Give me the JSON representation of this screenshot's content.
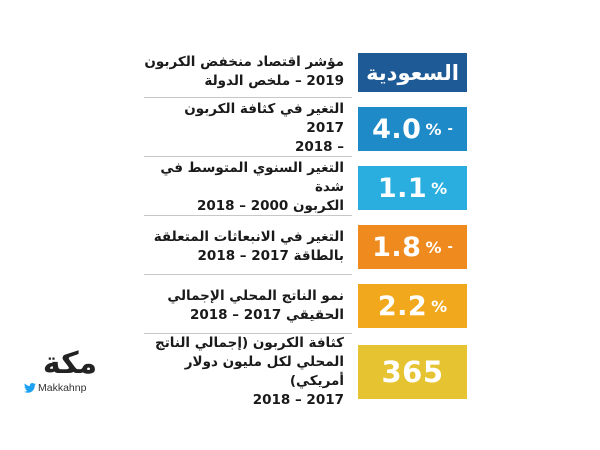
{
  "country_label": "السعودية",
  "rows": [
    {
      "label_line1": "مؤشر اقتصاد منخفض الكربون",
      "label_line2": "2019 – ملخص الدولة",
      "color": "#1e5a96"
    },
    {
      "label_line1": "التغير في كثافة الكربون 2017",
      "label_line2": "– 2018",
      "value": "4.0",
      "percent": "%",
      "minus": "-",
      "color": "#1f8ac8"
    },
    {
      "label_line1": "التغير السنوي المتوسط في شدة",
      "label_line2": "الكربون 2000 – 2018",
      "value": "1.1",
      "percent": "%",
      "color": "#2aaee0"
    },
    {
      "label_line1": "التغير في الانبعاثات المتعلقة",
      "label_line2": "بالطاقة 2017 – 2018",
      "value": "1.8",
      "percent": "%",
      "minus": "-",
      "color": "#ef8a1e"
    },
    {
      "label_line1": "نمو الناتج المحلي الإجمالي",
      "label_line2": "الحقيقي 2017 – 2018",
      "value": "2.2",
      "percent": "%",
      "color": "#f2a81d"
    },
    {
      "label_line1": "كثافة الكربون (إجمالي الناتج",
      "label_line2": "المحلي لكل مليون دولار أمريكي)",
      "label_line3": "2017 – 2018",
      "value": "365",
      "color": "#e6c330"
    }
  ],
  "logo": {
    "wordmark": "مكة",
    "handle": "Makkahnp"
  }
}
